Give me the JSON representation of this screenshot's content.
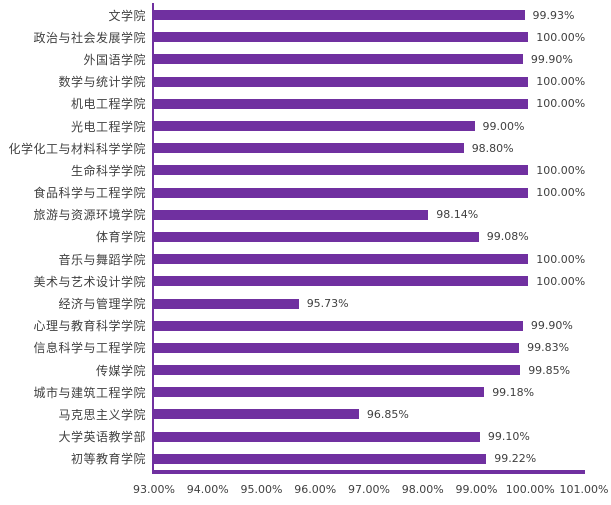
{
  "chart_data": {
    "type": "bar",
    "orientation": "horizontal",
    "title": "",
    "categories": [
      "文学院",
      "政治与社会发展学院",
      "外国语学院",
      "数学与统计学院",
      "机电工程学院",
      "光电工程学院",
      "化学化工与材料科学学院",
      "生命科学学院",
      "食品科学与工程学院",
      "旅游与资源环境学院",
      "体育学院",
      "音乐与舞蹈学院",
      "美术与艺术设计学院",
      "经济与管理学院",
      "心理与教育科学学院",
      "信息科学与工程学院",
      "传媒学院",
      "城市与建筑工程学院",
      "马克思主义学院",
      "大学英语教学部",
      "初等教育学院"
    ],
    "values": [
      99.93,
      100.0,
      99.9,
      100.0,
      100.0,
      99.0,
      98.8,
      100.0,
      100.0,
      98.14,
      99.08,
      100.0,
      100.0,
      95.73,
      99.9,
      99.83,
      99.85,
      99.18,
      96.85,
      99.1,
      99.22
    ],
    "labels": [
      "99.93%",
      "100.00%",
      "99.90%",
      "100.00%",
      "100.00%",
      "99.00%",
      "98.80%",
      "100.00%",
      "100.00%",
      "98.14%",
      "99.08%",
      "100.00%",
      "100.00%",
      "95.73%",
      "99.90%",
      "99.83%",
      "99.85%",
      "99.18%",
      "96.85%",
      "99.10%",
      "99.22%"
    ],
    "xlabel": "",
    "ylabel": "",
    "xlim": [
      93,
      101
    ],
    "x_ticks": [
      "93.00%",
      "94.00%",
      "95.00%",
      "96.00%",
      "97.00%",
      "98.00%",
      "99.00%",
      "100.00%",
      "101.00%"
    ],
    "grid": false,
    "legend": null,
    "bar_color": "#7030A0",
    "axis_color": "#7030A0",
    "text_color": "#404040",
    "background_color": "#FFFFFF"
  }
}
